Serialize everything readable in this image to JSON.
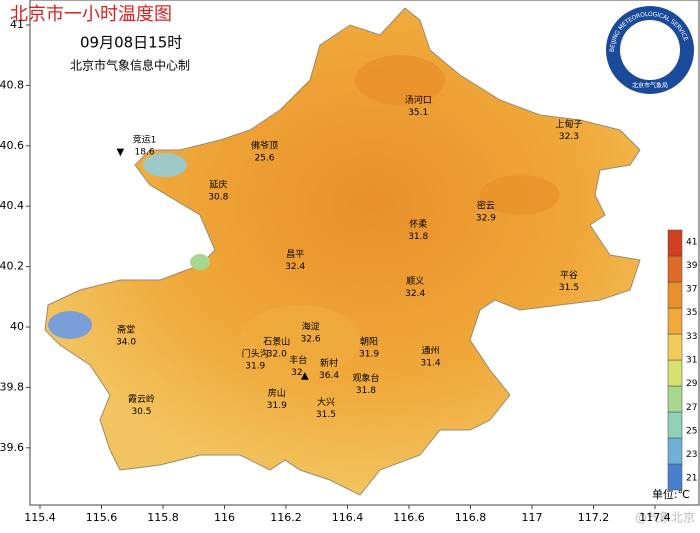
{
  "header": {
    "title": "北京市一小时温度图",
    "time": "09月08日15时",
    "producer": "北京市气象信息中心制"
  },
  "axes": {
    "xticks": [
      115.4,
      115.6,
      115.8,
      116,
      116.2,
      116.4,
      116.6,
      116.8,
      117,
      117.2,
      117.4
    ],
    "yticks": [
      39.6,
      39.8,
      40,
      40.2,
      40.4,
      40.6,
      40.8,
      41
    ]
  },
  "stations": [
    {
      "name": "竞运1",
      "temp": 18.6
    },
    {
      "name": "佛爷顶",
      "temp": 25.6
    },
    {
      "name": "汤河口",
      "temp": 35.1
    },
    {
      "name": "上甸子",
      "temp": 32.3
    },
    {
      "name": "延庆",
      "temp": 30.8
    },
    {
      "name": "怀柔",
      "temp": 31.8
    },
    {
      "name": "密云",
      "temp": 32.9
    },
    {
      "name": "昌平",
      "temp": 32.4
    },
    {
      "name": "平谷",
      "temp": 31.5
    },
    {
      "name": "顺义",
      "temp": 32.4
    },
    {
      "name": "斋堂",
      "temp": 34.0,
      "temp_label": "34.0"
    },
    {
      "name": "海淀",
      "temp": 32.6
    },
    {
      "name": "朝阳",
      "temp": 31.9
    },
    {
      "name": "石景山",
      "temp": 32.0,
      "temp_label": "32.0"
    },
    {
      "name": "门头沟",
      "temp": 31.9
    },
    {
      "name": "丰台",
      "temp": 32,
      "temp_label": "32."
    },
    {
      "name": "新村",
      "temp": 36.4
    },
    {
      "name": "房山",
      "temp": 31.9
    },
    {
      "name": "观象台",
      "temp": 31.8
    },
    {
      "name": "通州",
      "temp": 31.4
    },
    {
      "name": "大兴",
      "temp": 31.5
    },
    {
      "name": "霞云岭",
      "temp": 30.5
    }
  ],
  "colorbar": {
    "ticks": [
      21,
      23,
      25,
      27,
      29,
      31,
      33,
      35,
      37,
      39,
      41
    ],
    "colors": [
      "#4a7fd0",
      "#6fb0d8",
      "#8fd0b8",
      "#a8d890",
      "#d8e070",
      "#f2cc5a",
      "#f0a83a",
      "#e8902a",
      "#e06a28",
      "#d04020"
    ],
    "unit": "单位:℃"
  },
  "logo": {
    "en": "BEIJING METEOROLOGICAL SERVICE",
    "cn": "北京市气象局"
  },
  "watermark": "@气象北京"
}
